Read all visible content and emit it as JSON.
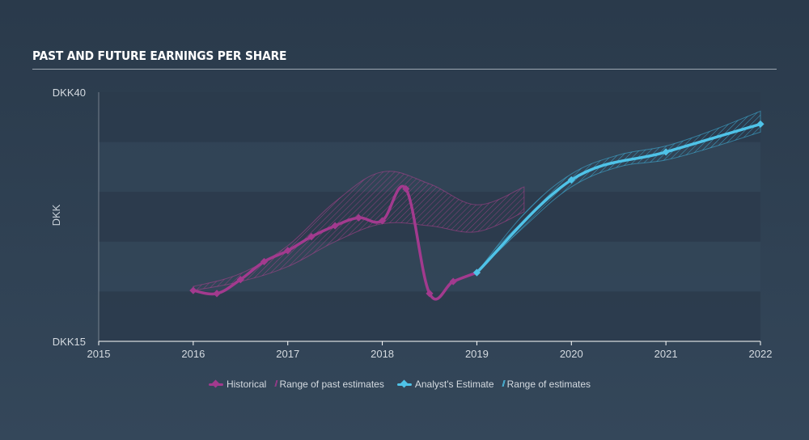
{
  "title": "PAST AND FUTURE EARNINGS PER SHARE",
  "colors": {
    "historical": "#a23a8e",
    "historical_hatch": "#b0418f",
    "estimate": "#4fc3e8",
    "estimate_hatch": "#3fb6e0",
    "band_dark": "#2c3b4c",
    "band_light": "#34475a"
  },
  "legend": {
    "historical": "Historical",
    "past_range": "Range of past estimates",
    "estimate": "Analyst's Estimate",
    "future_range": "Range of estimates"
  },
  "chart_data": {
    "type": "line",
    "title": "PAST AND FUTURE EARNINGS PER SHARE",
    "ylabel": "DKK",
    "ylim": [
      15,
      40
    ],
    "xlim": [
      2015,
      2022
    ],
    "y_tick_labels": [
      "DKK40",
      "DKK15"
    ],
    "x_ticks": [
      2015,
      2016,
      2017,
      2018,
      2019,
      2020,
      2021,
      2022
    ],
    "grid": "horizontal bands",
    "legend_position": "bottom-center",
    "series": [
      {
        "name": "Historical",
        "x": [
          2016.0,
          2016.25,
          2016.5,
          2016.75,
          2017.0,
          2017.25,
          2017.5,
          2017.75,
          2018.0,
          2018.25,
          2018.5,
          2018.75,
          2019.0
        ],
        "y": [
          20.1,
          19.8,
          21.2,
          23.0,
          24.1,
          25.5,
          26.6,
          27.4,
          27.1,
          30.3,
          19.8,
          21.0,
          21.9
        ]
      },
      {
        "name": "Range of past estimates",
        "x": [
          2016.0,
          2016.5,
          2017.0,
          2017.5,
          2018.0,
          2018.5,
          2019.0,
          2019.5
        ],
        "low": [
          20.1,
          21.0,
          22.5,
          25.0,
          26.8,
          26.6,
          26.0,
          28.0
        ],
        "high": [
          20.5,
          21.8,
          24.6,
          29.0,
          32.0,
          30.8,
          28.7,
          30.5
        ]
      },
      {
        "name": "Analyst's Estimate",
        "x": [
          2019.0,
          2020.0,
          2021.0,
          2022.0
        ],
        "y": [
          21.9,
          31.2,
          34.0,
          36.8
        ]
      },
      {
        "name": "Range of estimates",
        "x": [
          2019.0,
          2019.5,
          2020.0,
          2020.5,
          2021.0,
          2021.5,
          2022.0
        ],
        "low": [
          21.9,
          26.5,
          30.5,
          32.5,
          33.2,
          34.5,
          36.0
        ],
        "high": [
          21.9,
          27.8,
          31.8,
          33.7,
          34.6,
          36.2,
          38.1
        ]
      }
    ]
  }
}
